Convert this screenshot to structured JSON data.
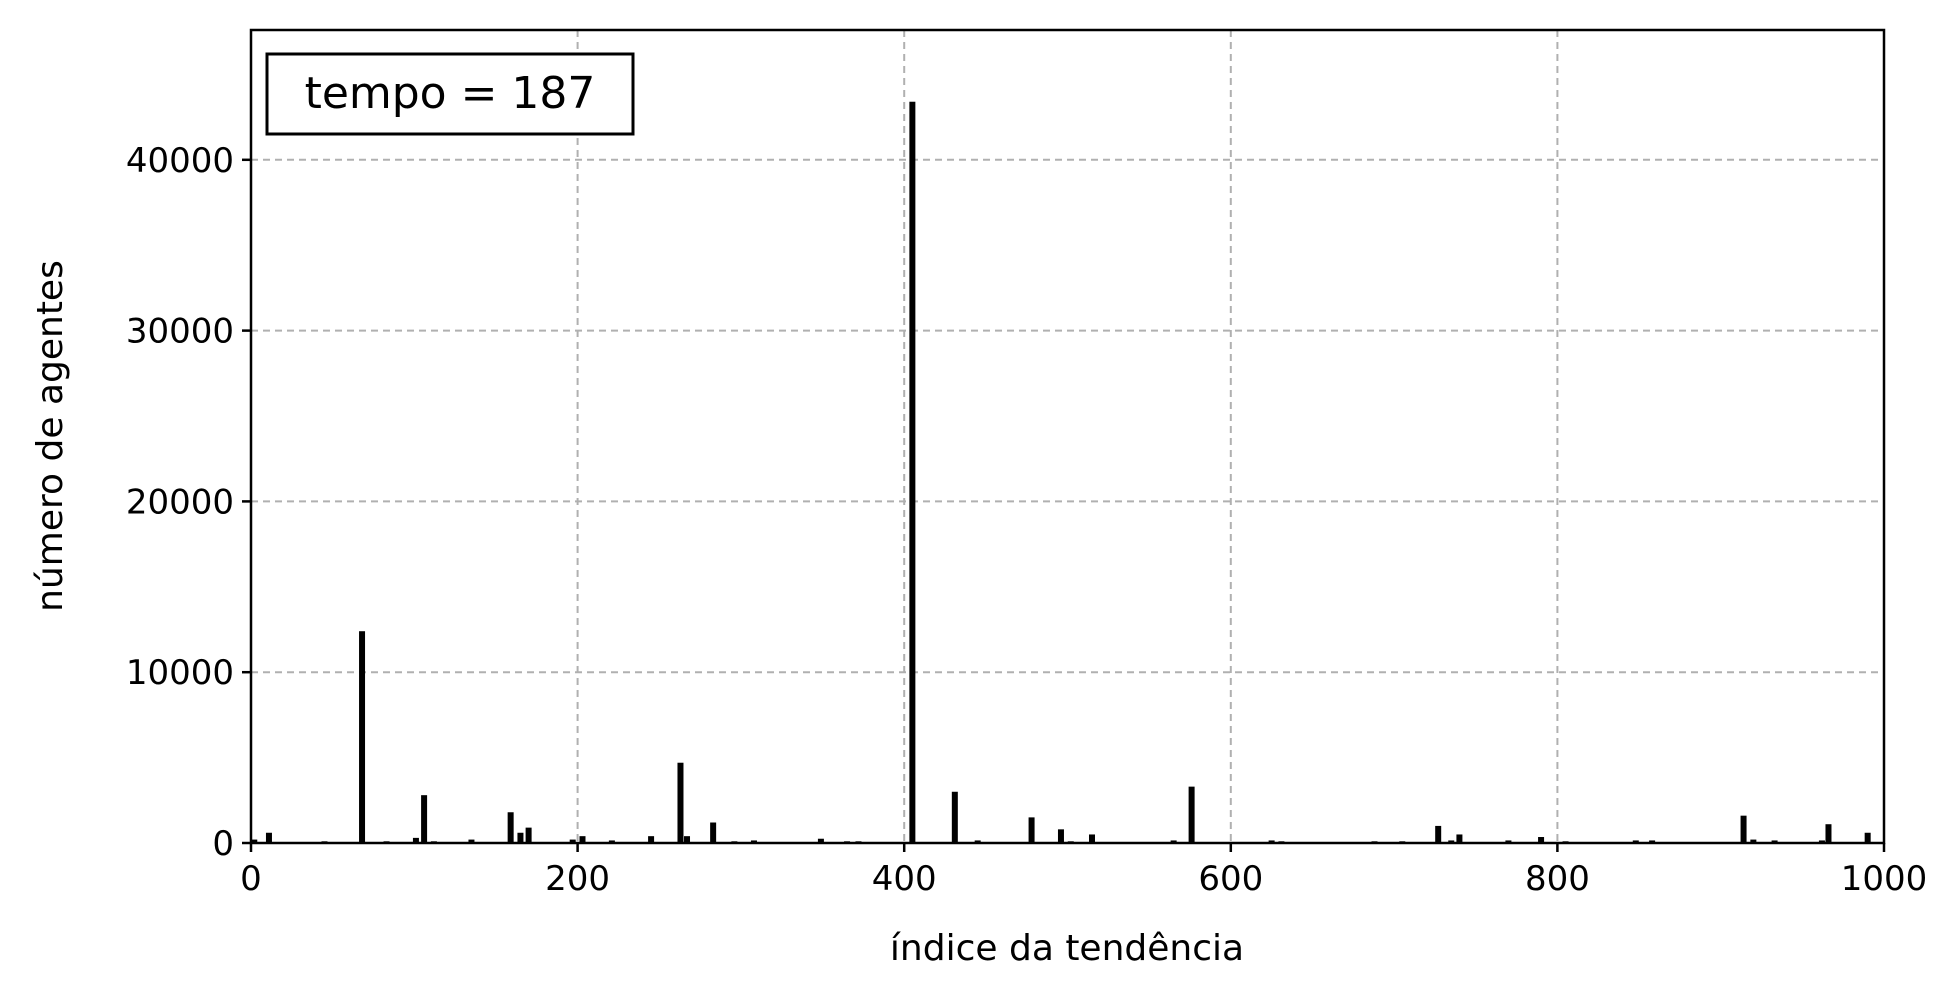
{
  "chart_data": {
    "type": "bar",
    "xlabel": "índice da tendência",
    "ylabel": "número de agentes",
    "xlim": [
      0,
      1000
    ],
    "ylim": [
      0,
      47600
    ],
    "grid": true,
    "annotation": "tempo = 187",
    "x_ticks": [
      "0",
      "200",
      "400",
      "600",
      "800",
      "1000"
    ],
    "y_ticks": [
      "0",
      "10000",
      "20000",
      "30000",
      "40000"
    ],
    "bar_color": "#000000",
    "series": [
      {
        "x": [
          2,
          11,
          45,
          68,
          83,
          101,
          106,
          112,
          135,
          159,
          165,
          170,
          197,
          203,
          221,
          245,
          263,
          267,
          283,
          296,
          308,
          349,
          365,
          372,
          405,
          431,
          445,
          478,
          496,
          502,
          515,
          565,
          576,
          625,
          631,
          688,
          705,
          727,
          735,
          740,
          770,
          790,
          805,
          848,
          858,
          914,
          920,
          933,
          962,
          966,
          990
        ],
        "y": [
          200,
          600,
          100,
          12400,
          100,
          300,
          2800,
          100,
          200,
          1800,
          600,
          900,
          200,
          400,
          150,
          400,
          4700,
          400,
          1200,
          100,
          150,
          250,
          100,
          100,
          43400,
          3000,
          150,
          1500,
          800,
          100,
          500,
          150,
          3300,
          150,
          100,
          100,
          100,
          1000,
          150,
          500,
          150,
          350,
          100,
          150,
          150,
          1600,
          200,
          150,
          150,
          1100,
          600
        ]
      }
    ]
  }
}
